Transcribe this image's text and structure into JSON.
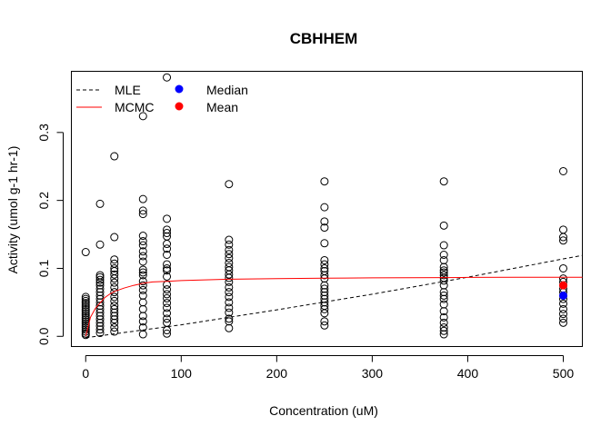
{
  "chart_data": {
    "type": "scatter",
    "title": "CBHHEM",
    "xlabel": "Concentration (uM)",
    "ylabel": "Activity (umol g-1 hr-1)",
    "xlim": [
      -15,
      520
    ],
    "ylim": [
      -0.015,
      0.39
    ],
    "x_ticks": [
      0,
      100,
      200,
      300,
      400,
      500
    ],
    "x_tick_labels": [
      "0",
      "100",
      "200",
      "300",
      "400",
      "500"
    ],
    "y_ticks": [
      0.0,
      0.1,
      0.2,
      0.3
    ],
    "y_tick_labels": [
      "0.0",
      "0.1",
      "0.2",
      "0.3"
    ],
    "grid": false,
    "legend_position": "top-left",
    "legend": [
      {
        "label": "MLE",
        "kind": "line",
        "style": "dashed",
        "color": "#000000"
      },
      {
        "label": "MCMC",
        "kind": "line",
        "style": "solid",
        "color": "#ff0000"
      },
      {
        "label": "Median",
        "kind": "point",
        "color": "#0000ff"
      },
      {
        "label": "Mean",
        "kind": "point",
        "color": "#ff0000"
      }
    ],
    "observations": [
      {
        "x": 0,
        "y": [
          0.124,
          0.058,
          0.055,
          0.052,
          0.049,
          0.046,
          0.043,
          0.04,
          0.037,
          0.034,
          0.031,
          0.028,
          0.025,
          0.022,
          0.019,
          0.016,
          0.013,
          0.01,
          0.007,
          0.004,
          0.002
        ]
      },
      {
        "x": 15,
        "y": [
          0.195,
          0.135,
          0.09,
          0.087,
          0.083,
          0.079,
          0.075,
          0.07,
          0.065,
          0.06,
          0.055,
          0.05,
          0.045,
          0.04,
          0.035,
          0.03,
          0.025,
          0.02,
          0.015,
          0.01,
          0.005
        ]
      },
      {
        "x": 30,
        "y": [
          0.265,
          0.146,
          0.113,
          0.107,
          0.1,
          0.096,
          0.091,
          0.085,
          0.079,
          0.072,
          0.065,
          0.058,
          0.052,
          0.045,
          0.04,
          0.035,
          0.03,
          0.025,
          0.02,
          0.013,
          0.007
        ]
      },
      {
        "x": 60,
        "y": [
          0.324,
          0.202,
          0.185,
          0.18,
          0.148,
          0.14,
          0.134,
          0.125,
          0.118,
          0.11,
          0.098,
          0.094,
          0.09,
          0.081,
          0.075,
          0.068,
          0.06,
          0.05,
          0.04,
          0.03,
          0.022,
          0.013,
          0.003
        ]
      },
      {
        "x": 85,
        "y": [
          0.381,
          0.173,
          0.157,
          0.152,
          0.147,
          0.136,
          0.129,
          0.12,
          0.106,
          0.1,
          0.097,
          0.088,
          0.076,
          0.069,
          0.062,
          0.056,
          0.049,
          0.042,
          0.034,
          0.026,
          0.02,
          0.009,
          0.004
        ]
      },
      {
        "x": 150,
        "y": [
          0.224,
          0.142,
          0.135,
          0.127,
          0.121,
          0.115,
          0.108,
          0.102,
          0.097,
          0.091,
          0.086,
          0.08,
          0.072,
          0.065,
          0.058,
          0.05,
          0.042,
          0.035,
          0.026,
          0.022,
          0.012
        ]
      },
      {
        "x": 250,
        "y": [
          0.228,
          0.19,
          0.169,
          0.16,
          0.137,
          0.112,
          0.106,
          0.1,
          0.096,
          0.09,
          0.085,
          0.075,
          0.07,
          0.065,
          0.06,
          0.055,
          0.05,
          0.045,
          0.04,
          0.034,
          0.022,
          0.016
        ]
      },
      {
        "x": 375,
        "y": [
          0.228,
          0.163,
          0.134,
          0.12,
          0.112,
          0.102,
          0.097,
          0.094,
          0.09,
          0.086,
          0.082,
          0.075,
          0.065,
          0.06,
          0.055,
          0.047,
          0.037,
          0.028,
          0.02,
          0.013,
          0.008,
          0.003
        ]
      },
      {
        "x": 500,
        "y": [
          0.243,
          0.157,
          0.146,
          0.141,
          0.1,
          0.085,
          0.08,
          0.075,
          0.07,
          0.065,
          0.06,
          0.055,
          0.048,
          0.04,
          0.033,
          0.026,
          0.02
        ]
      }
    ],
    "series": [
      {
        "name": "MLE",
        "color": "#000000",
        "style": "dashed",
        "x": [
          0,
          100,
          200,
          300,
          400,
          500,
          520
        ],
        "y": [
          -0.002,
          0.017,
          0.039,
          0.062,
          0.087,
          0.114,
          0.119
        ]
      },
      {
        "name": "MCMC",
        "color": "#ff0000",
        "style": "solid",
        "x": [
          0,
          5,
          10,
          15,
          20,
          25,
          30,
          40,
          50,
          60,
          70,
          85,
          100,
          150,
          200,
          250,
          300,
          375,
          400,
          450,
          500,
          520
        ],
        "y": [
          0.0,
          0.028,
          0.041,
          0.049,
          0.057,
          0.062,
          0.066,
          0.071,
          0.075,
          0.078,
          0.08,
          0.081,
          0.082,
          0.084,
          0.085,
          0.0855,
          0.086,
          0.0865,
          0.0867,
          0.087,
          0.087,
          0.087
        ]
      }
    ],
    "summary_points": [
      {
        "name": "Median",
        "x": 500,
        "y": 0.06,
        "color": "#0000ff"
      },
      {
        "name": "Mean",
        "x": 500,
        "y": 0.075,
        "color": "#ff0000"
      }
    ]
  }
}
